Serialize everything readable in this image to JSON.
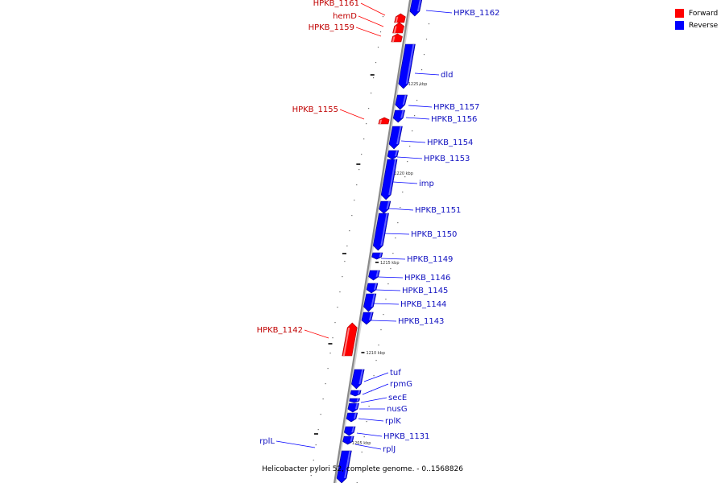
{
  "legend": {
    "forward_label": "Forward",
    "reverse_label": "Reverse",
    "forward_color": "#ff0000",
    "reverse_color": "#0000ff"
  },
  "caption": "Helicobacter pylori 52, complete genome. - 0..1568826",
  "scale_ticks": [
    "1225 kbp",
    "1220 kbp",
    "1215 kbp",
    "1210 kbp",
    "1205 kbp"
  ],
  "genes": [
    {
      "name": "HPKB_1162",
      "strand": "reverse"
    },
    {
      "name": "HPKB_1161",
      "strand": "forward"
    },
    {
      "name": "hemD",
      "strand": "forward"
    },
    {
      "name": "HPKB_1159",
      "strand": "forward"
    },
    {
      "name": "dld",
      "strand": "reverse"
    },
    {
      "name": "HPKB_1157",
      "strand": "reverse"
    },
    {
      "name": "HPKB_1156",
      "strand": "reverse"
    },
    {
      "name": "HPKB_1155",
      "strand": "forward"
    },
    {
      "name": "HPKB_1154",
      "strand": "reverse"
    },
    {
      "name": "HPKB_1153",
      "strand": "reverse"
    },
    {
      "name": "imp",
      "strand": "reverse"
    },
    {
      "name": "HPKB_1151",
      "strand": "reverse"
    },
    {
      "name": "HPKB_1150",
      "strand": "reverse"
    },
    {
      "name": "HPKB_1149",
      "strand": "reverse"
    },
    {
      "name": "HPKB_1146",
      "strand": "reverse"
    },
    {
      "name": "HPKB_1145",
      "strand": "reverse"
    },
    {
      "name": "HPKB_1144",
      "strand": "reverse"
    },
    {
      "name": "HPKB_1143",
      "strand": "reverse"
    },
    {
      "name": "HPKB_1142",
      "strand": "forward"
    },
    {
      "name": "tuf",
      "strand": "reverse"
    },
    {
      "name": "rpmG",
      "strand": "reverse"
    },
    {
      "name": "secE",
      "strand": "reverse"
    },
    {
      "name": "nusG",
      "strand": "reverse"
    },
    {
      "name": "rplK",
      "strand": "reverse"
    },
    {
      "name": "HPKB_1131",
      "strand": "reverse"
    },
    {
      "name": "rplJ",
      "strand": "reverse"
    },
    {
      "name": "rplL",
      "strand": "reverse"
    }
  ]
}
